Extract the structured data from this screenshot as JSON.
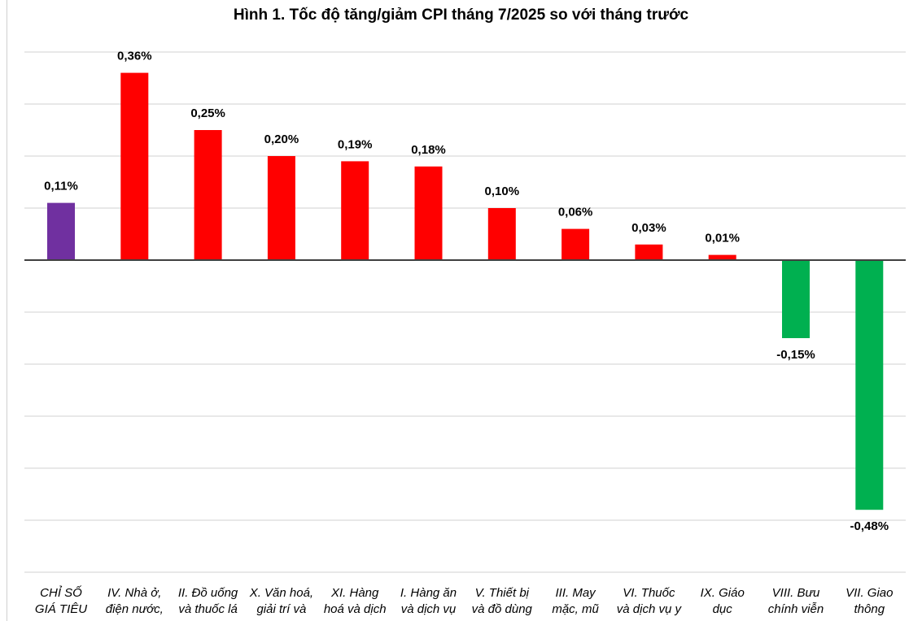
{
  "chart_data": {
    "type": "bar",
    "title": "Hình 1. Tốc độ tăng/giảm CPI tháng 7/2025 so với tháng trước",
    "xlabel": "",
    "ylabel": "",
    "ylim": [
      -0.6,
      0.4
    ],
    "categories": [
      [
        "CHỈ SỐ",
        "GIÁ TIÊU"
      ],
      [
        "IV. Nhà ở,",
        "điện nước,"
      ],
      [
        "II. Đồ uống",
        "và thuốc lá"
      ],
      [
        "X. Văn hoá,",
        "giải trí và"
      ],
      [
        "XI. Hàng",
        "hoá và dịch"
      ],
      [
        "I. Hàng ăn",
        "và dịch vụ"
      ],
      [
        "V. Thiết bị",
        "và đồ dùng"
      ],
      [
        "III. May",
        "mặc, mũ"
      ],
      [
        "VI. Thuốc",
        "và dịch vụ y"
      ],
      [
        "IX. Giáo",
        "dục"
      ],
      [
        "VIII. Bưu",
        "chính viễn"
      ],
      [
        "VII. Giao",
        "thông"
      ]
    ],
    "values": [
      0.11,
      0.36,
      0.25,
      0.2,
      0.19,
      0.18,
      0.1,
      0.06,
      0.03,
      0.01,
      -0.15,
      -0.48
    ],
    "labels": [
      "0,11%",
      "0,36%",
      "0,25%",
      "0,20%",
      "0,19%",
      "0,18%",
      "0,10%",
      "0,06%",
      "0,03%",
      "0,01%",
      "-0,15%",
      "-0,48%"
    ],
    "colors": [
      "#7030a0",
      "#ff0000",
      "#ff0000",
      "#ff0000",
      "#ff0000",
      "#ff0000",
      "#ff0000",
      "#ff0000",
      "#ff0000",
      "#ff0000",
      "#00b050",
      "#00b050"
    ],
    "gridlines": true,
    "legend": "none"
  }
}
